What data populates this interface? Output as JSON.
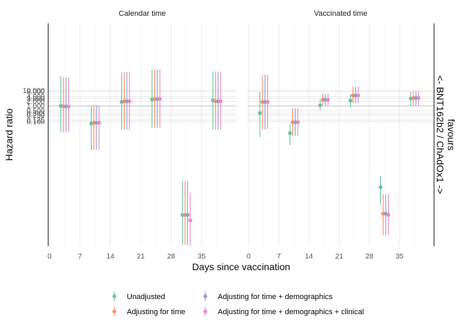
{
  "chart_data": {
    "type": "scatter",
    "xlabel": "Days since vaccination",
    "ylabel": "Hazard ratio",
    "right_label": "<- BNT162b2 / ChAdOx1 ->",
    "right_label_2": "favours",
    "x_ticks": [
      0,
      7,
      14,
      21,
      28,
      35
    ],
    "y_tick_labels": [
      "0.100",
      "0.125",
      "0.250",
      "0.333",
      "0.500",
      "1.000",
      "2.000",
      "3.000",
      "4.000",
      "8.000",
      "10.000"
    ],
    "y_tick_values": [
      0.1,
      0.125,
      0.25,
      0.333,
      0.5,
      1,
      2,
      3,
      4,
      8,
      10
    ],
    "y_scale": "log",
    "grid": true,
    "legend_position": "bottom",
    "series_names": [
      "Unadjusted",
      "Adjusting for time",
      "Adjusting for time + demographics",
      "Adjusting for time + demographics + clinical"
    ],
    "series_colors": [
      "#66c2a5",
      "#fc8d62",
      "#8da0cb",
      "#e78ac3"
    ],
    "panels": [
      {
        "title": "Calendar time",
        "periods": [
          {
            "x": 3.5,
            "est": [
              1.0,
              0.95,
              0.93,
              0.92
            ],
            "lo": [
              0.02,
              0.02,
              0.02,
              0.02
            ],
            "hi": [
              80,
              70,
              70,
              65
            ]
          },
          {
            "x": 10.5,
            "est": [
              0.075,
              0.08,
              0.082,
              0.083
            ],
            "lo": [
              0.0015,
              0.0015,
              0.0015,
              0.0015
            ],
            "hi": [
              1.0,
              1.1,
              1.1,
              1.1
            ]
          },
          {
            "x": 17.5,
            "est": [
              1.8,
              2.0,
              2.0,
              2.0
            ],
            "lo": [
              0.03,
              0.03,
              0.03,
              0.03
            ],
            "hi": [
              140,
              150,
              150,
              150
            ]
          },
          {
            "x": 24.5,
            "est": [
              2.6,
              2.8,
              2.8,
              2.8
            ],
            "lo": [
              0.04,
              0.04,
              0.04,
              0.04
            ],
            "hi": [
              200,
              220,
              220,
              220
            ]
          },
          {
            "x": 31.5,
            "est": [
              1e-07,
              1e-07,
              1e-07,
              4.5e-08
            ],
            "lo": [
              1.2e-09,
              1.2e-09,
              1.2e-09,
              1e-09
            ],
            "hi": [
              1.5e-05,
              1.5e-05,
              1.5e-05,
              2.6e-06
            ]
          },
          {
            "x": 38.5,
            "est": [
              2.3,
              2.0,
              2.0,
              2.0
            ],
            "lo": [
              0.03,
              0.03,
              0.03,
              0.03
            ],
            "hi": [
              170,
              160,
              160,
              160
            ]
          }
        ]
      },
      {
        "title": "Vaccinated time",
        "periods": [
          {
            "x": 3.5,
            "est": [
              0.35,
              1.8,
              1.8,
              1.8
            ],
            "lo": [
              0.01,
              0.03,
              0.03,
              0.03
            ],
            "hi": [
              8,
              100,
              100,
              100
            ]
          },
          {
            "x": 10.5,
            "est": [
              0.018,
              0.09,
              0.09,
              0.09
            ],
            "lo": [
              0.003,
              0.012,
              0.012,
              0.012
            ],
            "hi": [
              0.07,
              0.7,
              0.7,
              0.7
            ]
          },
          {
            "x": 17.5,
            "est": [
              1.1,
              2.5,
              2.5,
              2.5
            ],
            "lo": [
              0.55,
              1.1,
              1.1,
              1.1
            ],
            "hi": [
              2.5,
              6,
              6,
              6
            ]
          },
          {
            "x": 24.5,
            "est": [
              2.2,
              4.7,
              4.7,
              4.7
            ],
            "lo": [
              0.8,
              1.5,
              1.5,
              1.5
            ],
            "hi": [
              6,
              18,
              18,
              18
            ]
          },
          {
            "x": 31.5,
            "est": [
              6e-06,
              1.2e-07,
              1.2e-07,
              1e-07
            ],
            "lo": [
              5e-07,
              5e-09,
              5e-09,
              5e-09
            ],
            "hi": [
              3e-05,
              2.2e-06,
              2.2e-06,
              2.2e-06
            ]
          },
          {
            "x": 38.5,
            "est": [
              3.0,
              3.2,
              3.2,
              3.2
            ],
            "lo": [
              1.0,
              1.0,
              1.0,
              1.0
            ],
            "hi": [
              8,
              9,
              9,
              9
            ]
          }
        ]
      }
    ]
  }
}
